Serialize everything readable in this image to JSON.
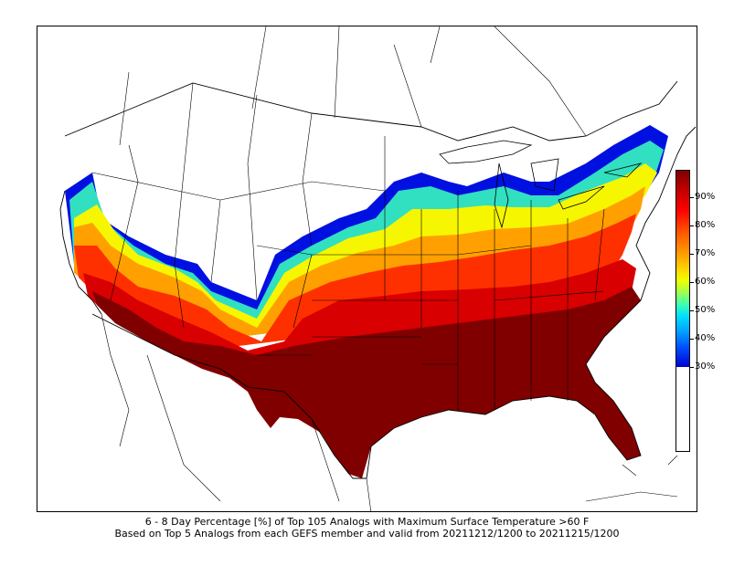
{
  "caption": {
    "line1": "6 - 8 Day Percentage [%] of Top 105 Analogs with Maximum Surface Temperature >60 F",
    "line2": "Based on Top 5 Analogs from each GEFS member and valid from 20211212/1200 to 20211215/1200"
  },
  "colorbar": {
    "labels": [
      "90%",
      "80%",
      "70%",
      "60%",
      "50%",
      "40%",
      "30%"
    ],
    "min_shown": 30,
    "max_shown": 100
  },
  "map": {
    "region": "Contiguous United States",
    "colors": {
      "very_high": "#7f0000",
      "high": "#d40000",
      "mid_high": "#ff4000",
      "mid": "#ffb000",
      "mid_low": "#ffff00",
      "low": "#40ffb0",
      "very_low": "#00a0ff",
      "lowest": "#0000d0"
    }
  }
}
